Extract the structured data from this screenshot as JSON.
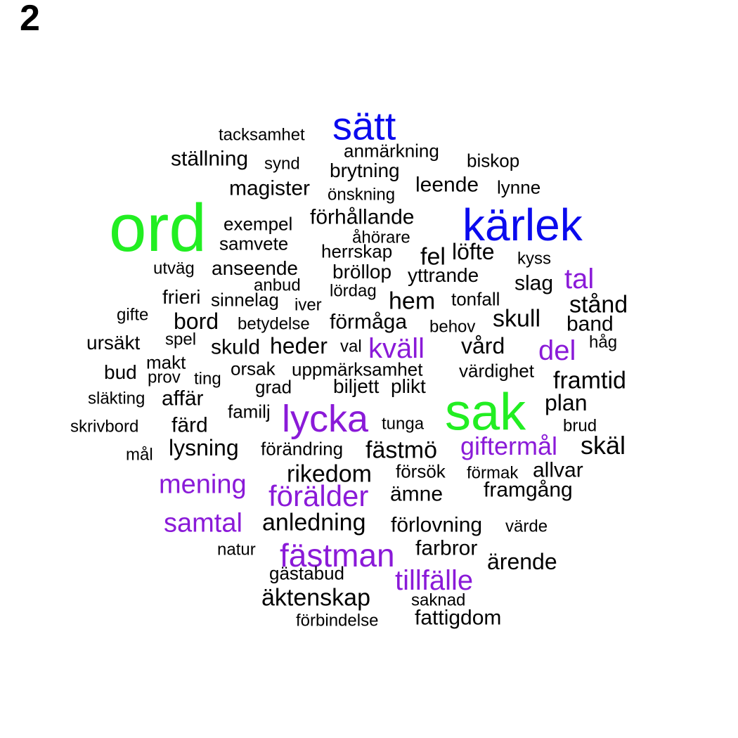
{
  "panel_label": "2",
  "colors": {
    "green": "#22ee22",
    "blue": "#0a0aee",
    "purple": "#8a1ad8",
    "black": "#000000"
  },
  "words": [
    {
      "text": "ord",
      "color": "green"
    },
    {
      "text": "sak",
      "color": "green"
    },
    {
      "text": "kärlek",
      "color": "blue"
    },
    {
      "text": "sätt",
      "color": "blue"
    },
    {
      "text": "lycka",
      "color": "purple"
    },
    {
      "text": "fästman",
      "color": "purple"
    },
    {
      "text": "förälder",
      "color": "purple"
    },
    {
      "text": "samtal",
      "color": "purple"
    },
    {
      "text": "mening",
      "color": "purple"
    },
    {
      "text": "giftermål",
      "color": "purple"
    },
    {
      "text": "tillfälle",
      "color": "purple"
    },
    {
      "text": "kväll",
      "color": "purple"
    },
    {
      "text": "tal",
      "color": "purple"
    },
    {
      "text": "del",
      "color": "purple"
    },
    {
      "text": "tacksamhet",
      "color": "black"
    },
    {
      "text": "anmärkning",
      "color": "black"
    },
    {
      "text": "ställning",
      "color": "black"
    },
    {
      "text": "synd",
      "color": "black"
    },
    {
      "text": "brytning",
      "color": "black"
    },
    {
      "text": "biskop",
      "color": "black"
    },
    {
      "text": "magister",
      "color": "black"
    },
    {
      "text": "önskning",
      "color": "black"
    },
    {
      "text": "leende",
      "color": "black"
    },
    {
      "text": "lynne",
      "color": "black"
    },
    {
      "text": "exempel",
      "color": "black"
    },
    {
      "text": "förhållande",
      "color": "black"
    },
    {
      "text": "åhörare",
      "color": "black"
    },
    {
      "text": "samvete",
      "color": "black"
    },
    {
      "text": "herrskap",
      "color": "black"
    },
    {
      "text": "fel",
      "color": "black"
    },
    {
      "text": "löfte",
      "color": "black"
    },
    {
      "text": "kyss",
      "color": "black"
    },
    {
      "text": "utväg",
      "color": "black"
    },
    {
      "text": "anseende",
      "color": "black"
    },
    {
      "text": "bröllop",
      "color": "black"
    },
    {
      "text": "yttrande",
      "color": "black"
    },
    {
      "text": "slag",
      "color": "black"
    },
    {
      "text": "anbud",
      "color": "black"
    },
    {
      "text": "frieri",
      "color": "black"
    },
    {
      "text": "sinnelag",
      "color": "black"
    },
    {
      "text": "lördag",
      "color": "black"
    },
    {
      "text": "iver",
      "color": "black"
    },
    {
      "text": "hem",
      "color": "black"
    },
    {
      "text": "tonfall",
      "color": "black"
    },
    {
      "text": "stånd",
      "color": "black"
    },
    {
      "text": "gifte",
      "color": "black"
    },
    {
      "text": "bord",
      "color": "black"
    },
    {
      "text": "betydelse",
      "color": "black"
    },
    {
      "text": "förmåga",
      "color": "black"
    },
    {
      "text": "behov",
      "color": "black"
    },
    {
      "text": "skull",
      "color": "black"
    },
    {
      "text": "band",
      "color": "black"
    },
    {
      "text": "ursäkt",
      "color": "black"
    },
    {
      "text": "spel",
      "color": "black"
    },
    {
      "text": "skuld",
      "color": "black"
    },
    {
      "text": "heder",
      "color": "black"
    },
    {
      "text": "val",
      "color": "black"
    },
    {
      "text": "vård",
      "color": "black"
    },
    {
      "text": "håg",
      "color": "black"
    },
    {
      "text": "makt",
      "color": "black"
    },
    {
      "text": "bud",
      "color": "black"
    },
    {
      "text": "prov",
      "color": "black"
    },
    {
      "text": "ting",
      "color": "black"
    },
    {
      "text": "orsak",
      "color": "black"
    },
    {
      "text": "uppmärksamhet",
      "color": "black"
    },
    {
      "text": "värdighet",
      "color": "black"
    },
    {
      "text": "framtid",
      "color": "black"
    },
    {
      "text": "grad",
      "color": "black"
    },
    {
      "text": "biljett",
      "color": "black"
    },
    {
      "text": "plikt",
      "color": "black"
    },
    {
      "text": "släkting",
      "color": "black"
    },
    {
      "text": "affär",
      "color": "black"
    },
    {
      "text": "plan",
      "color": "black"
    },
    {
      "text": "familj",
      "color": "black"
    },
    {
      "text": "skrivbord",
      "color": "black"
    },
    {
      "text": "färd",
      "color": "black"
    },
    {
      "text": "tunga",
      "color": "black"
    },
    {
      "text": "brud",
      "color": "black"
    },
    {
      "text": "mål",
      "color": "black"
    },
    {
      "text": "lysning",
      "color": "black"
    },
    {
      "text": "förändring",
      "color": "black"
    },
    {
      "text": "fästmö",
      "color": "black"
    },
    {
      "text": "skäl",
      "color": "black"
    },
    {
      "text": "rikedom",
      "color": "black"
    },
    {
      "text": "försök",
      "color": "black"
    },
    {
      "text": "förmak",
      "color": "black"
    },
    {
      "text": "allvar",
      "color": "black"
    },
    {
      "text": "framgång",
      "color": "black"
    },
    {
      "text": "ämne",
      "color": "black"
    },
    {
      "text": "anledning",
      "color": "black"
    },
    {
      "text": "förlovning",
      "color": "black"
    },
    {
      "text": "värde",
      "color": "black"
    },
    {
      "text": "natur",
      "color": "black"
    },
    {
      "text": "farbror",
      "color": "black"
    },
    {
      "text": "ärende",
      "color": "black"
    },
    {
      "text": "gästabud",
      "color": "black"
    },
    {
      "text": "äktenskap",
      "color": "black"
    },
    {
      "text": "saknad",
      "color": "black"
    },
    {
      "text": "fattigdom",
      "color": "black"
    },
    {
      "text": "förbindelse",
      "color": "black"
    }
  ]
}
